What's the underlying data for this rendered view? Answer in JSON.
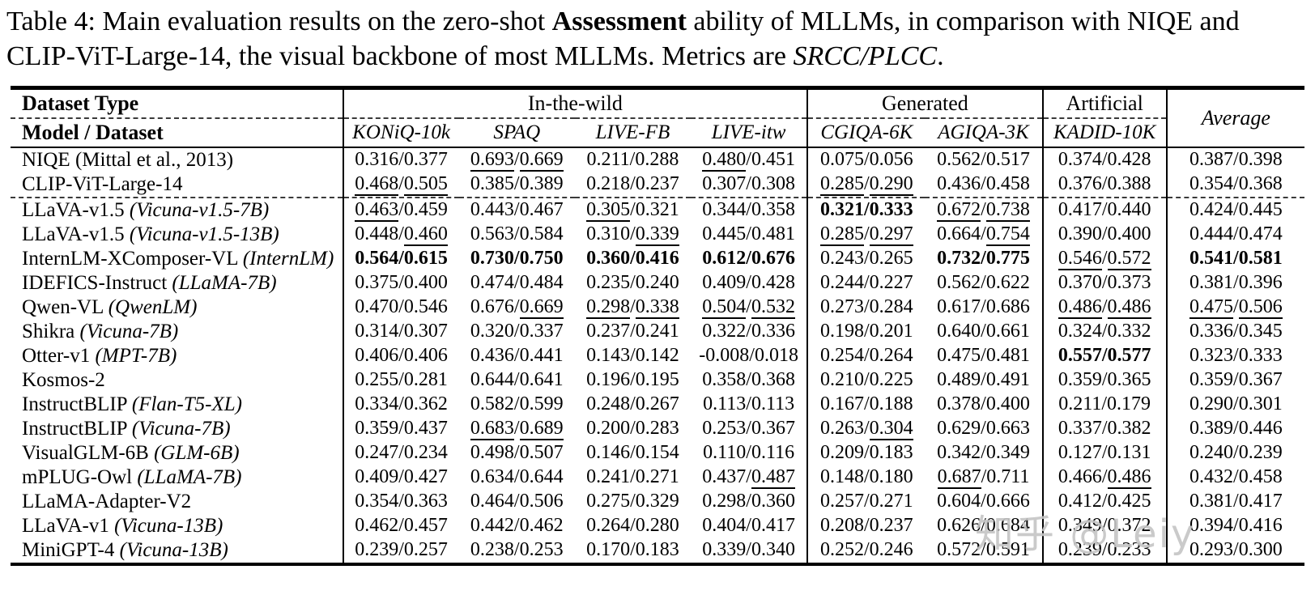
{
  "caption": {
    "segments": [
      {
        "t": "Table 4: Main evaluation results on the zero-shot ",
        "style": ""
      },
      {
        "t": "Assessment",
        "style": "bold"
      },
      {
        "t": " ability of MLLMs, in comparison with NIQE and CLIP-ViT-Large-14, the visual backbone of most MLLMs. Metrics are ",
        "style": ""
      },
      {
        "t": "SRCC/PLCC",
        "style": "italic"
      },
      {
        "t": ".",
        "style": ""
      }
    ]
  },
  "table": {
    "header": {
      "row1_left": "Dataset Type",
      "row2_left": "Model / Dataset",
      "groups": [
        {
          "label": "In-the-wild",
          "span": 4
        },
        {
          "label": "Generated",
          "span": 2
        },
        {
          "label": "Artificial",
          "span": 1
        }
      ],
      "datasets": [
        "KONiQ-10k",
        "SPAQ",
        "LIVE-FB",
        "LIVE-itw",
        "CGIQA-6K",
        "AGIQA-3K",
        "KADID-10K"
      ],
      "average_label": "Average"
    },
    "rows": [
      {
        "model": "NIQE (Mittal et al., 2013)",
        "sub": "",
        "dashed_top": false,
        "cells": [
          {
            "t": "0.316/0.377",
            "u": "none",
            "b": false
          },
          {
            "t": "0.693/0.669",
            "u": "both",
            "b": false
          },
          {
            "t": "0.211/0.288",
            "u": "none",
            "b": false
          },
          {
            "t": "0.480/0.451",
            "u": "first",
            "b": false
          },
          {
            "t": "0.075/0.056",
            "u": "none",
            "b": false
          },
          {
            "t": "0.562/0.517",
            "u": "none",
            "b": false
          },
          {
            "t": "0.374/0.428",
            "u": "none",
            "b": false
          },
          {
            "t": "0.387/0.398",
            "u": "none",
            "b": false
          }
        ]
      },
      {
        "model": "CLIP-ViT-Large-14",
        "sub": "",
        "dashed_top": false,
        "cells": [
          {
            "t": "0.468/0.505",
            "u": "both",
            "b": false
          },
          {
            "t": "0.385/0.389",
            "u": "none",
            "b": false
          },
          {
            "t": "0.218/0.237",
            "u": "none",
            "b": false
          },
          {
            "t": "0.307/0.308",
            "u": "none",
            "b": false
          },
          {
            "t": "0.285/0.290",
            "u": "both",
            "b": false
          },
          {
            "t": "0.436/0.458",
            "u": "none",
            "b": false
          },
          {
            "t": "0.376/0.388",
            "u": "none",
            "b": false
          },
          {
            "t": "0.354/0.368",
            "u": "none",
            "b": false
          }
        ]
      },
      {
        "model": "LLaVA-v1.5",
        "sub": "(Vicuna-v1.5-7B)",
        "dashed_top": true,
        "cells": [
          {
            "t": "0.463/0.459",
            "u": "first",
            "b": false
          },
          {
            "t": "0.443/0.467",
            "u": "none",
            "b": false
          },
          {
            "t": "0.305/0.321",
            "u": "first",
            "b": false
          },
          {
            "t": "0.344/0.358",
            "u": "none",
            "b": false
          },
          {
            "t": "0.321/0.333",
            "u": "none",
            "b": true
          },
          {
            "t": "0.672/0.738",
            "u": "both",
            "b": false
          },
          {
            "t": "0.417/0.440",
            "u": "none",
            "b": false
          },
          {
            "t": "0.424/0.445",
            "u": "none",
            "b": false
          }
        ]
      },
      {
        "model": "LLaVA-v1.5",
        "sub": "(Vicuna-v1.5-13B)",
        "dashed_top": false,
        "cells": [
          {
            "t": "0.448/0.460",
            "u": "second",
            "b": false
          },
          {
            "t": "0.563/0.584",
            "u": "none",
            "b": false
          },
          {
            "t": "0.310/0.339",
            "u": "second",
            "b": false
          },
          {
            "t": "0.445/0.481",
            "u": "none",
            "b": false
          },
          {
            "t": "0.285/0.297",
            "u": "both",
            "b": false
          },
          {
            "t": "0.664/0.754",
            "u": "second",
            "b": false
          },
          {
            "t": "0.390/0.400",
            "u": "none",
            "b": false
          },
          {
            "t": "0.444/0.474",
            "u": "none",
            "b": false
          }
        ]
      },
      {
        "model": "InternLM-XComposer-VL",
        "sub": "(InternLM)",
        "dashed_top": false,
        "cells": [
          {
            "t": "0.564/0.615",
            "u": "none",
            "b": true
          },
          {
            "t": "0.730/0.750",
            "u": "none",
            "b": true
          },
          {
            "t": "0.360/0.416",
            "u": "none",
            "b": true
          },
          {
            "t": "0.612/0.676",
            "u": "none",
            "b": true
          },
          {
            "t": "0.243/0.265",
            "u": "none",
            "b": false
          },
          {
            "t": "0.732/0.775",
            "u": "none",
            "b": true
          },
          {
            "t": "0.546/0.572",
            "u": "both",
            "b": false
          },
          {
            "t": "0.541/0.581",
            "u": "none",
            "b": true
          }
        ]
      },
      {
        "model": "IDEFICS-Instruct",
        "sub": "(LLaMA-7B)",
        "dashed_top": false,
        "cells": [
          {
            "t": "0.375/0.400",
            "u": "none",
            "b": false
          },
          {
            "t": "0.474/0.484",
            "u": "none",
            "b": false
          },
          {
            "t": "0.235/0.240",
            "u": "none",
            "b": false
          },
          {
            "t": "0.409/0.428",
            "u": "none",
            "b": false
          },
          {
            "t": "0.244/0.227",
            "u": "none",
            "b": false
          },
          {
            "t": "0.562/0.622",
            "u": "none",
            "b": false
          },
          {
            "t": "0.370/0.373",
            "u": "none",
            "b": false
          },
          {
            "t": "0.381/0.396",
            "u": "none",
            "b": false
          }
        ]
      },
      {
        "model": "Qwen-VL",
        "sub": "(QwenLM)",
        "dashed_top": false,
        "cells": [
          {
            "t": "0.470/0.546",
            "u": "none",
            "b": false
          },
          {
            "t": "0.676/0.669",
            "u": "second",
            "b": false
          },
          {
            "t": "0.298/0.338",
            "u": "both",
            "b": false
          },
          {
            "t": "0.504/0.532",
            "u": "both",
            "b": false
          },
          {
            "t": "0.273/0.284",
            "u": "none",
            "b": false
          },
          {
            "t": "0.617/0.686",
            "u": "none",
            "b": false
          },
          {
            "t": "0.486/0.486",
            "u": "both",
            "b": false
          },
          {
            "t": "0.475/0.506",
            "u": "both",
            "b": false
          }
        ]
      },
      {
        "model": "Shikra",
        "sub": "(Vicuna-7B)",
        "dashed_top": false,
        "cells": [
          {
            "t": "0.314/0.307",
            "u": "none",
            "b": false
          },
          {
            "t": "0.320/0.337",
            "u": "none",
            "b": false
          },
          {
            "t": "0.237/0.241",
            "u": "none",
            "b": false
          },
          {
            "t": "0.322/0.336",
            "u": "none",
            "b": false
          },
          {
            "t": "0.198/0.201",
            "u": "none",
            "b": false
          },
          {
            "t": "0.640/0.661",
            "u": "none",
            "b": false
          },
          {
            "t": "0.324/0.332",
            "u": "none",
            "b": false
          },
          {
            "t": "0.336/0.345",
            "u": "none",
            "b": false
          }
        ]
      },
      {
        "model": "Otter-v1",
        "sub": "(MPT-7B)",
        "dashed_top": false,
        "cells": [
          {
            "t": "0.406/0.406",
            "u": "none",
            "b": false
          },
          {
            "t": "0.436/0.441",
            "u": "none",
            "b": false
          },
          {
            "t": "0.143/0.142",
            "u": "none",
            "b": false
          },
          {
            "t": "-0.008/0.018",
            "u": "none",
            "b": false
          },
          {
            "t": "0.254/0.264",
            "u": "none",
            "b": false
          },
          {
            "t": "0.475/0.481",
            "u": "none",
            "b": false
          },
          {
            "t": "0.557/0.577",
            "u": "none",
            "b": true
          },
          {
            "t": "0.323/0.333",
            "u": "none",
            "b": false
          }
        ]
      },
      {
        "model": "Kosmos-2",
        "sub": "",
        "dashed_top": false,
        "cells": [
          {
            "t": "0.255/0.281",
            "u": "none",
            "b": false
          },
          {
            "t": "0.644/0.641",
            "u": "none",
            "b": false
          },
          {
            "t": "0.196/0.195",
            "u": "none",
            "b": false
          },
          {
            "t": "0.358/0.368",
            "u": "none",
            "b": false
          },
          {
            "t": "0.210/0.225",
            "u": "none",
            "b": false
          },
          {
            "t": "0.489/0.491",
            "u": "none",
            "b": false
          },
          {
            "t": "0.359/0.365",
            "u": "none",
            "b": false
          },
          {
            "t": "0.359/0.367",
            "u": "none",
            "b": false
          }
        ]
      },
      {
        "model": "InstructBLIP",
        "sub": "(Flan-T5-XL)",
        "dashed_top": false,
        "cells": [
          {
            "t": "0.334/0.362",
            "u": "none",
            "b": false
          },
          {
            "t": "0.582/0.599",
            "u": "none",
            "b": false
          },
          {
            "t": "0.248/0.267",
            "u": "none",
            "b": false
          },
          {
            "t": "0.113/0.113",
            "u": "none",
            "b": false
          },
          {
            "t": "0.167/0.188",
            "u": "none",
            "b": false
          },
          {
            "t": "0.378/0.400",
            "u": "none",
            "b": false
          },
          {
            "t": "0.211/0.179",
            "u": "none",
            "b": false
          },
          {
            "t": "0.290/0.301",
            "u": "none",
            "b": false
          }
        ]
      },
      {
        "model": "InstructBLIP",
        "sub": "(Vicuna-7B)",
        "dashed_top": false,
        "cells": [
          {
            "t": "0.359/0.437",
            "u": "none",
            "b": false
          },
          {
            "t": "0.683/0.689",
            "u": "both",
            "b": false
          },
          {
            "t": "0.200/0.283",
            "u": "none",
            "b": false
          },
          {
            "t": "0.253/0.367",
            "u": "none",
            "b": false
          },
          {
            "t": "0.263/0.304",
            "u": "second",
            "b": false
          },
          {
            "t": "0.629/0.663",
            "u": "none",
            "b": false
          },
          {
            "t": "0.337/0.382",
            "u": "none",
            "b": false
          },
          {
            "t": "0.389/0.446",
            "u": "none",
            "b": false
          }
        ]
      },
      {
        "model": "VisualGLM-6B",
        "sub": "(GLM-6B)",
        "dashed_top": false,
        "cells": [
          {
            "t": "0.247/0.234",
            "u": "none",
            "b": false
          },
          {
            "t": "0.498/0.507",
            "u": "none",
            "b": false
          },
          {
            "t": "0.146/0.154",
            "u": "none",
            "b": false
          },
          {
            "t": "0.110/0.116",
            "u": "none",
            "b": false
          },
          {
            "t": "0.209/0.183",
            "u": "none",
            "b": false
          },
          {
            "t": "0.342/0.349",
            "u": "none",
            "b": false
          },
          {
            "t": "0.127/0.131",
            "u": "none",
            "b": false
          },
          {
            "t": "0.240/0.239",
            "u": "none",
            "b": false
          }
        ]
      },
      {
        "model": "mPLUG-Owl",
        "sub": "(LLaMA-7B)",
        "dashed_top": false,
        "cells": [
          {
            "t": "0.409/0.427",
            "u": "none",
            "b": false
          },
          {
            "t": "0.634/0.644",
            "u": "none",
            "b": false
          },
          {
            "t": "0.241/0.271",
            "u": "none",
            "b": false
          },
          {
            "t": "0.437/0.487",
            "u": "second",
            "b": false
          },
          {
            "t": "0.148/0.180",
            "u": "none",
            "b": false
          },
          {
            "t": "0.687/0.711",
            "u": "first",
            "b": false
          },
          {
            "t": "0.466/0.486",
            "u": "second",
            "b": false
          },
          {
            "t": "0.432/0.458",
            "u": "none",
            "b": false
          }
        ]
      },
      {
        "model": "LLaMA-Adapter-V2",
        "sub": "",
        "dashed_top": false,
        "cells": [
          {
            "t": "0.354/0.363",
            "u": "none",
            "b": false
          },
          {
            "t": "0.464/0.506",
            "u": "none",
            "b": false
          },
          {
            "t": "0.275/0.329",
            "u": "none",
            "b": false
          },
          {
            "t": "0.298/0.360",
            "u": "none",
            "b": false
          },
          {
            "t": "0.257/0.271",
            "u": "none",
            "b": false
          },
          {
            "t": "0.604/0.666",
            "u": "none",
            "b": false
          },
          {
            "t": "0.412/0.425",
            "u": "none",
            "b": false
          },
          {
            "t": "0.381/0.417",
            "u": "none",
            "b": false
          }
        ]
      },
      {
        "model": "LLaVA-v1",
        "sub": "(Vicuna-13B)",
        "dashed_top": false,
        "cells": [
          {
            "t": "0.462/0.457",
            "u": "none",
            "b": false
          },
          {
            "t": "0.442/0.462",
            "u": "none",
            "b": false
          },
          {
            "t": "0.264/0.280",
            "u": "none",
            "b": false
          },
          {
            "t": "0.404/0.417",
            "u": "none",
            "b": false
          },
          {
            "t": "0.208/0.237",
            "u": "none",
            "b": false
          },
          {
            "t": "0.626/0.684",
            "u": "none",
            "b": false
          },
          {
            "t": "0.349/0.372",
            "u": "none",
            "b": false
          },
          {
            "t": "0.394/0.416",
            "u": "none",
            "b": false
          }
        ]
      },
      {
        "model": "MiniGPT-4",
        "sub": "(Vicuna-13B)",
        "dashed_top": false,
        "cells": [
          {
            "t": "0.239/0.257",
            "u": "none",
            "b": false
          },
          {
            "t": "0.238/0.253",
            "u": "none",
            "b": false
          },
          {
            "t": "0.170/0.183",
            "u": "none",
            "b": false
          },
          {
            "t": "0.339/0.340",
            "u": "none",
            "b": false
          },
          {
            "t": "0.252/0.246",
            "u": "none",
            "b": false
          },
          {
            "t": "0.572/0.591",
            "u": "none",
            "b": false
          },
          {
            "t": "0.239/0.233",
            "u": "none",
            "b": false
          },
          {
            "t": "0.293/0.300",
            "u": "none",
            "b": false
          }
        ]
      }
    ]
  },
  "watermark": {
    "text": "知乎 @Leiy",
    "color": "#c5c5c5"
  },
  "colors": {
    "rule": "#000000",
    "dashed": "#3a3a3a",
    "background": "#ffffff"
  }
}
